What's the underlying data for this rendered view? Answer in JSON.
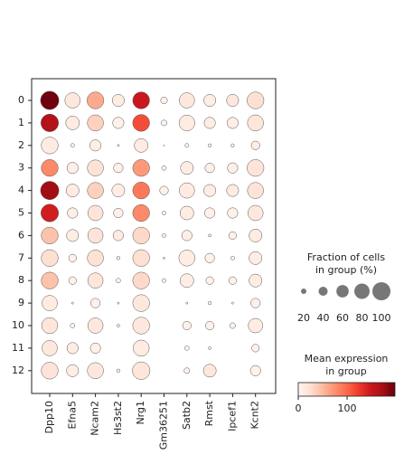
{
  "chart_data": {
    "type": "dot",
    "rows": [
      "0",
      "1",
      "2",
      "3",
      "4",
      "5",
      "6",
      "7",
      "8",
      "9",
      "10",
      "11",
      "12"
    ],
    "genes": [
      "Dpp10",
      "Efna5",
      "Ncam2",
      "Hs3st2",
      "Nrg1",
      "Gm36251",
      "Satb2",
      "Rmst",
      "Ipcef1",
      "Kcnt2"
    ],
    "fraction": [
      [
        95,
        75,
        85,
        55,
        85,
        25,
        75,
        55,
        55,
        85
      ],
      [
        90,
        65,
        80,
        50,
        85,
        20,
        78,
        50,
        50,
        80
      ],
      [
        85,
        12,
        50,
        5,
        65,
        2,
        12,
        10,
        10,
        35
      ],
      [
        85,
        50,
        80,
        40,
        85,
        15,
        60,
        40,
        45,
        85
      ],
      [
        95,
        60,
        80,
        60,
        85,
        35,
        75,
        55,
        55,
        80
      ],
      [
        90,
        45,
        75,
        40,
        85,
        12,
        65,
        45,
        45,
        75
      ],
      [
        85,
        55,
        75,
        45,
        85,
        12,
        45,
        8,
        30,
        60
      ],
      [
        85,
        30,
        80,
        10,
        85,
        5,
        80,
        40,
        12,
        60
      ],
      [
        85,
        30,
        75,
        15,
        85,
        12,
        65,
        30,
        30,
        60
      ],
      [
        75,
        5,
        40,
        5,
        85,
        0,
        5,
        10,
        5,
        40
      ],
      [
        80,
        15,
        75,
        8,
        85,
        0,
        35,
        35,
        20,
        70
      ],
      [
        75,
        50,
        45,
        0,
        80,
        0,
        15,
        8,
        0,
        30
      ],
      [
        85,
        55,
        80,
        10,
        90,
        0,
        20,
        60,
        0,
        45
      ]
    ],
    "expression": [
      [
        195,
        15,
        60,
        10,
        150,
        5,
        15,
        10,
        15,
        25
      ],
      [
        165,
        12,
        35,
        5,
        115,
        3,
        12,
        10,
        10,
        18
      ],
      [
        12,
        2,
        8,
        2,
        12,
        1,
        2,
        2,
        2,
        8
      ],
      [
        80,
        8,
        22,
        6,
        70,
        2,
        10,
        6,
        8,
        20
      ],
      [
        175,
        12,
        35,
        10,
        90,
        6,
        12,
        10,
        12,
        20
      ],
      [
        145,
        8,
        20,
        6,
        80,
        2,
        10,
        6,
        6,
        15
      ],
      [
        45,
        10,
        20,
        12,
        30,
        2,
        8,
        2,
        6,
        12
      ],
      [
        25,
        4,
        22,
        2,
        25,
        1,
        10,
        6,
        2,
        10
      ],
      [
        45,
        4,
        18,
        2,
        30,
        2,
        10,
        4,
        4,
        10
      ],
      [
        12,
        1,
        6,
        1,
        15,
        0,
        1,
        2,
        1,
        6
      ],
      [
        18,
        2,
        15,
        1,
        15,
        0,
        6,
        6,
        3,
        10
      ],
      [
        15,
        10,
        6,
        0,
        12,
        0,
        2,
        2,
        0,
        5
      ],
      [
        20,
        8,
        15,
        2,
        18,
        0,
        3,
        15,
        0,
        6
      ]
    ],
    "size_legend_title": [
      "Fraction of cells",
      "in group (%)"
    ],
    "size_ticks": [
      20,
      40,
      60,
      80,
      100
    ],
    "color_legend_title": [
      "Mean expression",
      "in group"
    ],
    "clim": [
      0,
      198
    ],
    "cticks": [
      0,
      100
    ],
    "colormap": [
      "#fff5f0",
      "#fee0d2",
      "#fcbba1",
      "#fc9272",
      "#fb6a4a",
      "#ef3b2c",
      "#cb181d",
      "#a50f15",
      "#67000d"
    ]
  }
}
